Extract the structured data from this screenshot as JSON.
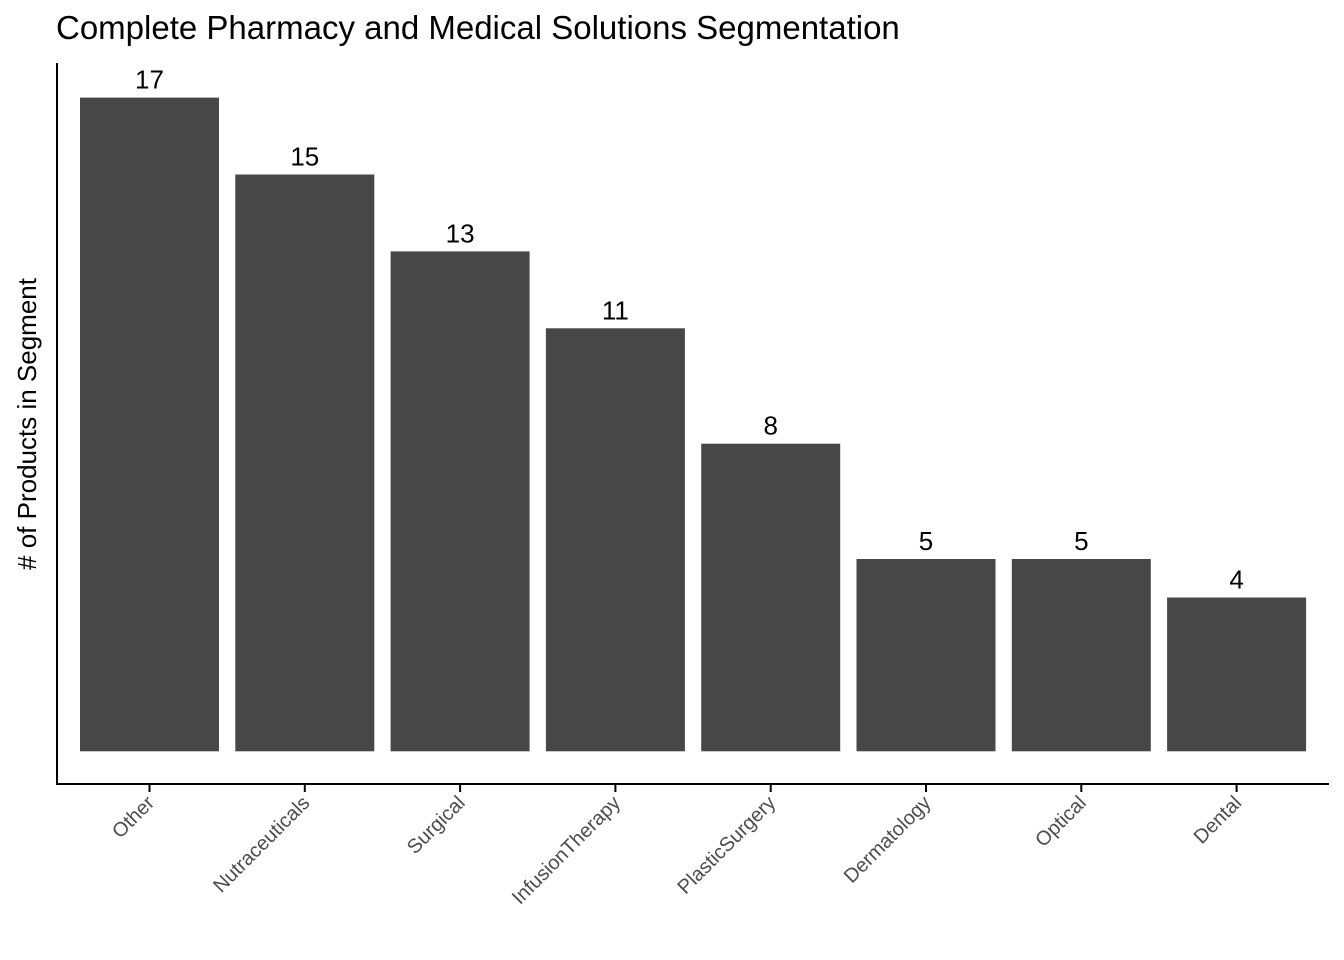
{
  "chart_data": {
    "type": "bar",
    "title": "Complete Pharmacy and Medical Solutions Segmentation",
    "xlabel": "",
    "ylabel": "# of Products in Segment",
    "categories": [
      "Other",
      "Nutraceuticals",
      "Surgical",
      "InfusionTherapy",
      "PlasticSurgery",
      "Dermatology",
      "Optical",
      "Dental"
    ],
    "values": [
      17,
      15,
      13,
      11,
      8,
      5,
      5,
      4
    ],
    "data_labels": [
      "17",
      "15",
      "13",
      "11",
      "8",
      "5",
      "5",
      "4"
    ],
    "ylim": [
      -0.85,
      17.9
    ],
    "grid": false,
    "legend": "none",
    "bar_color": "#474747",
    "axis_color": "#000000",
    "tick_label_color": "#4d4d4d"
  }
}
